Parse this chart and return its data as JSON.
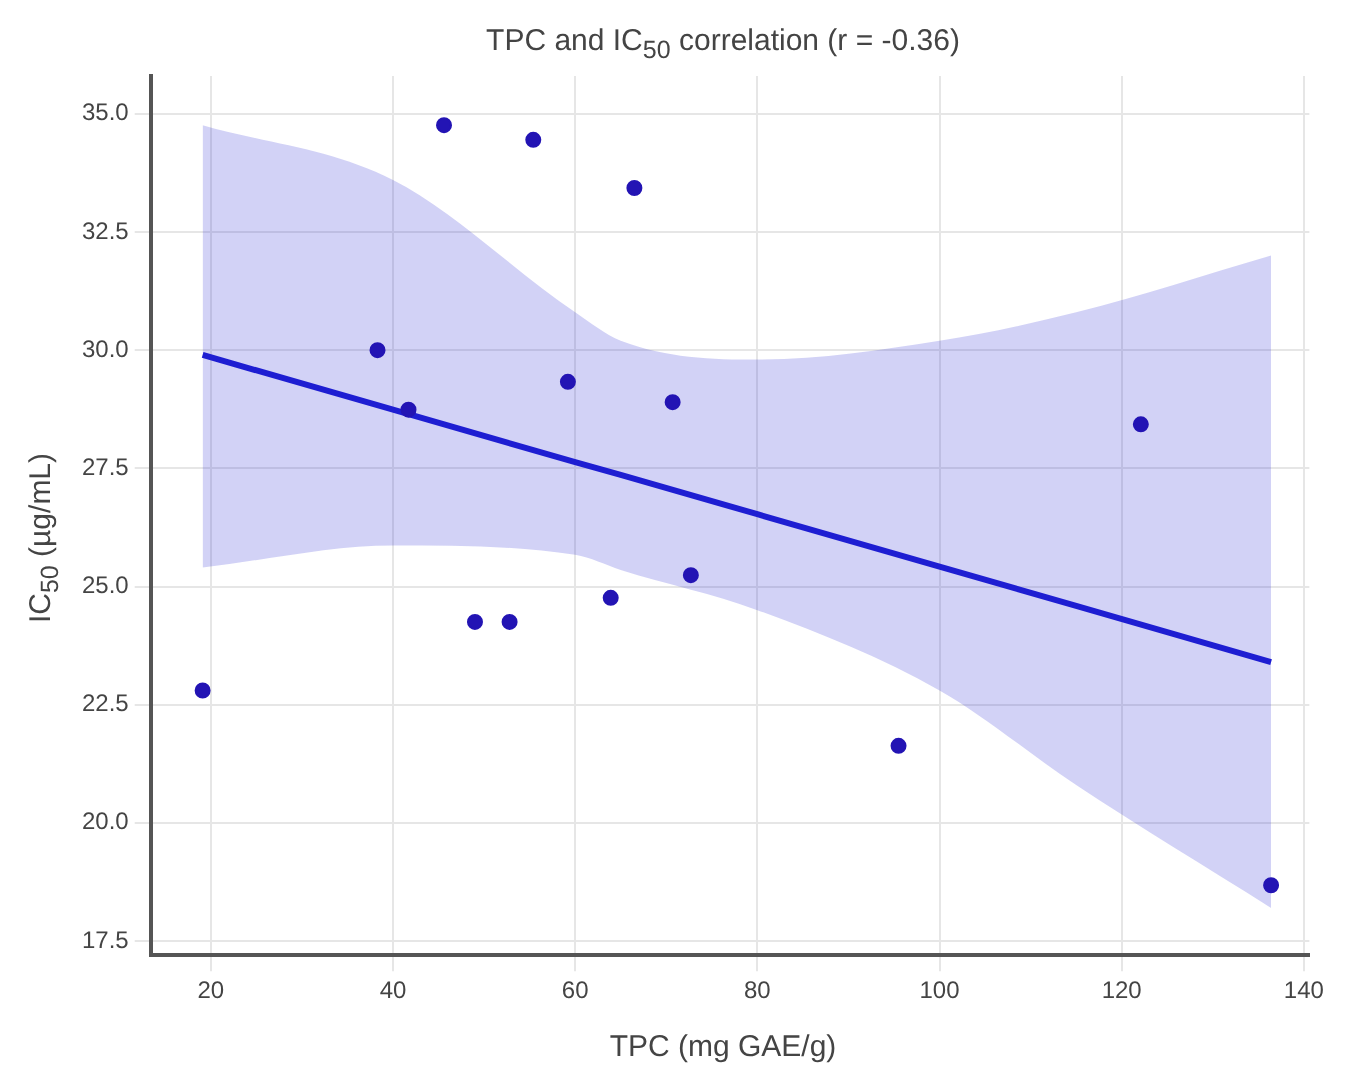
{
  "chart_data": {
    "type": "scatter",
    "title": "TPC and IC$_{50}$ correlation (r = -0.36)",
    "xlabel": "TPC (mg GAE/g)",
    "ylabel": "IC$_{50}$ (µg/mL)",
    "x": [
      45.6,
      55.4,
      66.5,
      38.3,
      41.7,
      59.2,
      70.7,
      122.1,
      19.1,
      49.0,
      52.8,
      63.9,
      72.7,
      95.5,
      136.4
    ],
    "series": [
      {
        "color": "#2314b4",
        "values": [
          34.76,
          34.45,
          33.43,
          30.0,
          28.74,
          29.33,
          28.9,
          28.43,
          22.8,
          24.25,
          24.25,
          24.76,
          25.24,
          21.63,
          18.68
        ]
      },
      {
        "type": "line",
        "marker": "none",
        "color": "#1e1ed2",
        "x": [
          19.1,
          40,
          60,
          65,
          80,
          100,
          115,
          136.4
        ],
        "values": [
          29.9,
          28.74,
          27.63,
          27.36,
          26.53,
          25.42,
          24.59,
          23.4
        ],
        "lower": [
          25.4,
          25.87,
          25.67,
          25.35,
          24.5,
          22.8,
          20.8,
          18.2
        ],
        "upper": [
          34.76,
          33.6,
          30.8,
          30.2,
          29.8,
          30.2,
          30.8,
          32.0
        ]
      }
    ],
    "xlim": [
      13.4,
      140.6
    ],
    "xticks": [
      20,
      40,
      60,
      80,
      100,
      120,
      140
    ],
    "ylim": [
      17.2,
      35.8
    ],
    "yticks": [
      {
        "value": 17.5,
        "label": "17.5"
      },
      {
        "value": 20,
        "label": "20.0"
      },
      {
        "value": 22.5,
        "label": "22.5"
      },
      {
        "value": 25,
        "label": "25.0"
      },
      {
        "value": 27.5,
        "label": "27.5"
      },
      {
        "value": 30,
        "label": "30.0"
      },
      {
        "value": 32.5,
        "label": "32.5"
      },
      {
        "value": 35,
        "label": "35.0"
      }
    ],
    "grid": true,
    "legend": false,
    "marker": "circle",
    "line_style": "solid"
  }
}
